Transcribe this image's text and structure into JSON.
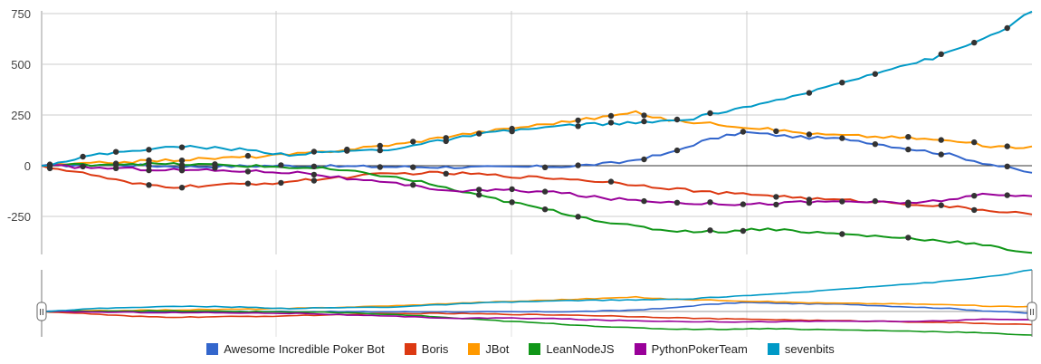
{
  "chart_data": {
    "type": "line",
    "y_ticks": [
      "750",
      "500",
      "250",
      "0",
      "-250"
    ],
    "ylim": [
      -430,
      760
    ],
    "x_points": 120,
    "navigator_handle_glyph": "II",
    "series": [
      {
        "name": "Awesome Incredible Poker Bot",
        "color": "#3366cc",
        "anchors": [
          [
            0,
            0
          ],
          [
            8,
            5
          ],
          [
            18,
            -5
          ],
          [
            28,
            0
          ],
          [
            40,
            -5
          ],
          [
            55,
            -8
          ],
          [
            64,
            -3
          ],
          [
            70,
            15
          ],
          [
            76,
            60
          ],
          [
            80,
            120
          ],
          [
            85,
            165
          ],
          [
            92,
            140
          ],
          [
            98,
            130
          ],
          [
            104,
            90
          ],
          [
            110,
            55
          ],
          [
            114,
            15
          ],
          [
            120,
            -35
          ]
        ]
      },
      {
        "name": "Boris",
        "color": "#dc3912",
        "anchors": [
          [
            0,
            0
          ],
          [
            6,
            -45
          ],
          [
            11,
            -90
          ],
          [
            16,
            -105
          ],
          [
            22,
            -95
          ],
          [
            28,
            -85
          ],
          [
            34,
            -65
          ],
          [
            40,
            -45
          ],
          [
            46,
            -35
          ],
          [
            52,
            -40
          ],
          [
            58,
            -55
          ],
          [
            64,
            -65
          ],
          [
            70,
            -85
          ],
          [
            76,
            -110
          ],
          [
            82,
            -135
          ],
          [
            88,
            -145
          ],
          [
            94,
            -165
          ],
          [
            100,
            -175
          ],
          [
            106,
            -190
          ],
          [
            112,
            -210
          ],
          [
            120,
            -240
          ]
        ]
      },
      {
        "name": "JBot",
        "color": "#ff9900",
        "anchors": [
          [
            0,
            0
          ],
          [
            8,
            15
          ],
          [
            14,
            25
          ],
          [
            20,
            35
          ],
          [
            26,
            45
          ],
          [
            32,
            60
          ],
          [
            38,
            85
          ],
          [
            44,
            110
          ],
          [
            50,
            150
          ],
          [
            56,
            180
          ],
          [
            62,
            210
          ],
          [
            68,
            240
          ],
          [
            72,
            262
          ],
          [
            76,
            225
          ],
          [
            82,
            205
          ],
          [
            88,
            180
          ],
          [
            94,
            155
          ],
          [
            100,
            145
          ],
          [
            106,
            135
          ],
          [
            112,
            115
          ],
          [
            116,
            90
          ],
          [
            120,
            95
          ]
        ]
      },
      {
        "name": "LeanNodeJS",
        "color": "#109618",
        "anchors": [
          [
            0,
            0
          ],
          [
            10,
            10
          ],
          [
            20,
            5
          ],
          [
            28,
            -5
          ],
          [
            34,
            -15
          ],
          [
            40,
            -40
          ],
          [
            46,
            -80
          ],
          [
            52,
            -140
          ],
          [
            58,
            -190
          ],
          [
            64,
            -240
          ],
          [
            70,
            -290
          ],
          [
            76,
            -320
          ],
          [
            82,
            -325
          ],
          [
            88,
            -310
          ],
          [
            94,
            -330
          ],
          [
            100,
            -345
          ],
          [
            106,
            -360
          ],
          [
            112,
            -380
          ],
          [
            120,
            -430
          ]
        ]
      },
      {
        "name": "PythonPokerTeam",
        "color": "#990099",
        "anchors": [
          [
            0,
            0
          ],
          [
            8,
            -12
          ],
          [
            16,
            -20
          ],
          [
            24,
            -25
          ],
          [
            32,
            -35
          ],
          [
            38,
            -70
          ],
          [
            44,
            -95
          ],
          [
            50,
            -125
          ],
          [
            56,
            -120
          ],
          [
            62,
            -130
          ],
          [
            68,
            -160
          ],
          [
            74,
            -175
          ],
          [
            80,
            -185
          ],
          [
            86,
            -190
          ],
          [
            92,
            -180
          ],
          [
            98,
            -175
          ],
          [
            104,
            -185
          ],
          [
            108,
            -175
          ],
          [
            114,
            -145
          ],
          [
            120,
            -150
          ]
        ]
      },
      {
        "name": "sevenbits",
        "color": "#0099c6",
        "anchors": [
          [
            0,
            0
          ],
          [
            6,
            50
          ],
          [
            12,
            80
          ],
          [
            18,
            95
          ],
          [
            24,
            80
          ],
          [
            30,
            55
          ],
          [
            36,
            70
          ],
          [
            42,
            80
          ],
          [
            48,
            120
          ],
          [
            54,
            160
          ],
          [
            60,
            185
          ],
          [
            66,
            205
          ],
          [
            72,
            210
          ],
          [
            78,
            225
          ],
          [
            84,
            280
          ],
          [
            90,
            325
          ],
          [
            96,
            400
          ],
          [
            102,
            470
          ],
          [
            108,
            530
          ],
          [
            112,
            590
          ],
          [
            116,
            660
          ],
          [
            120,
            760
          ]
        ]
      }
    ]
  }
}
